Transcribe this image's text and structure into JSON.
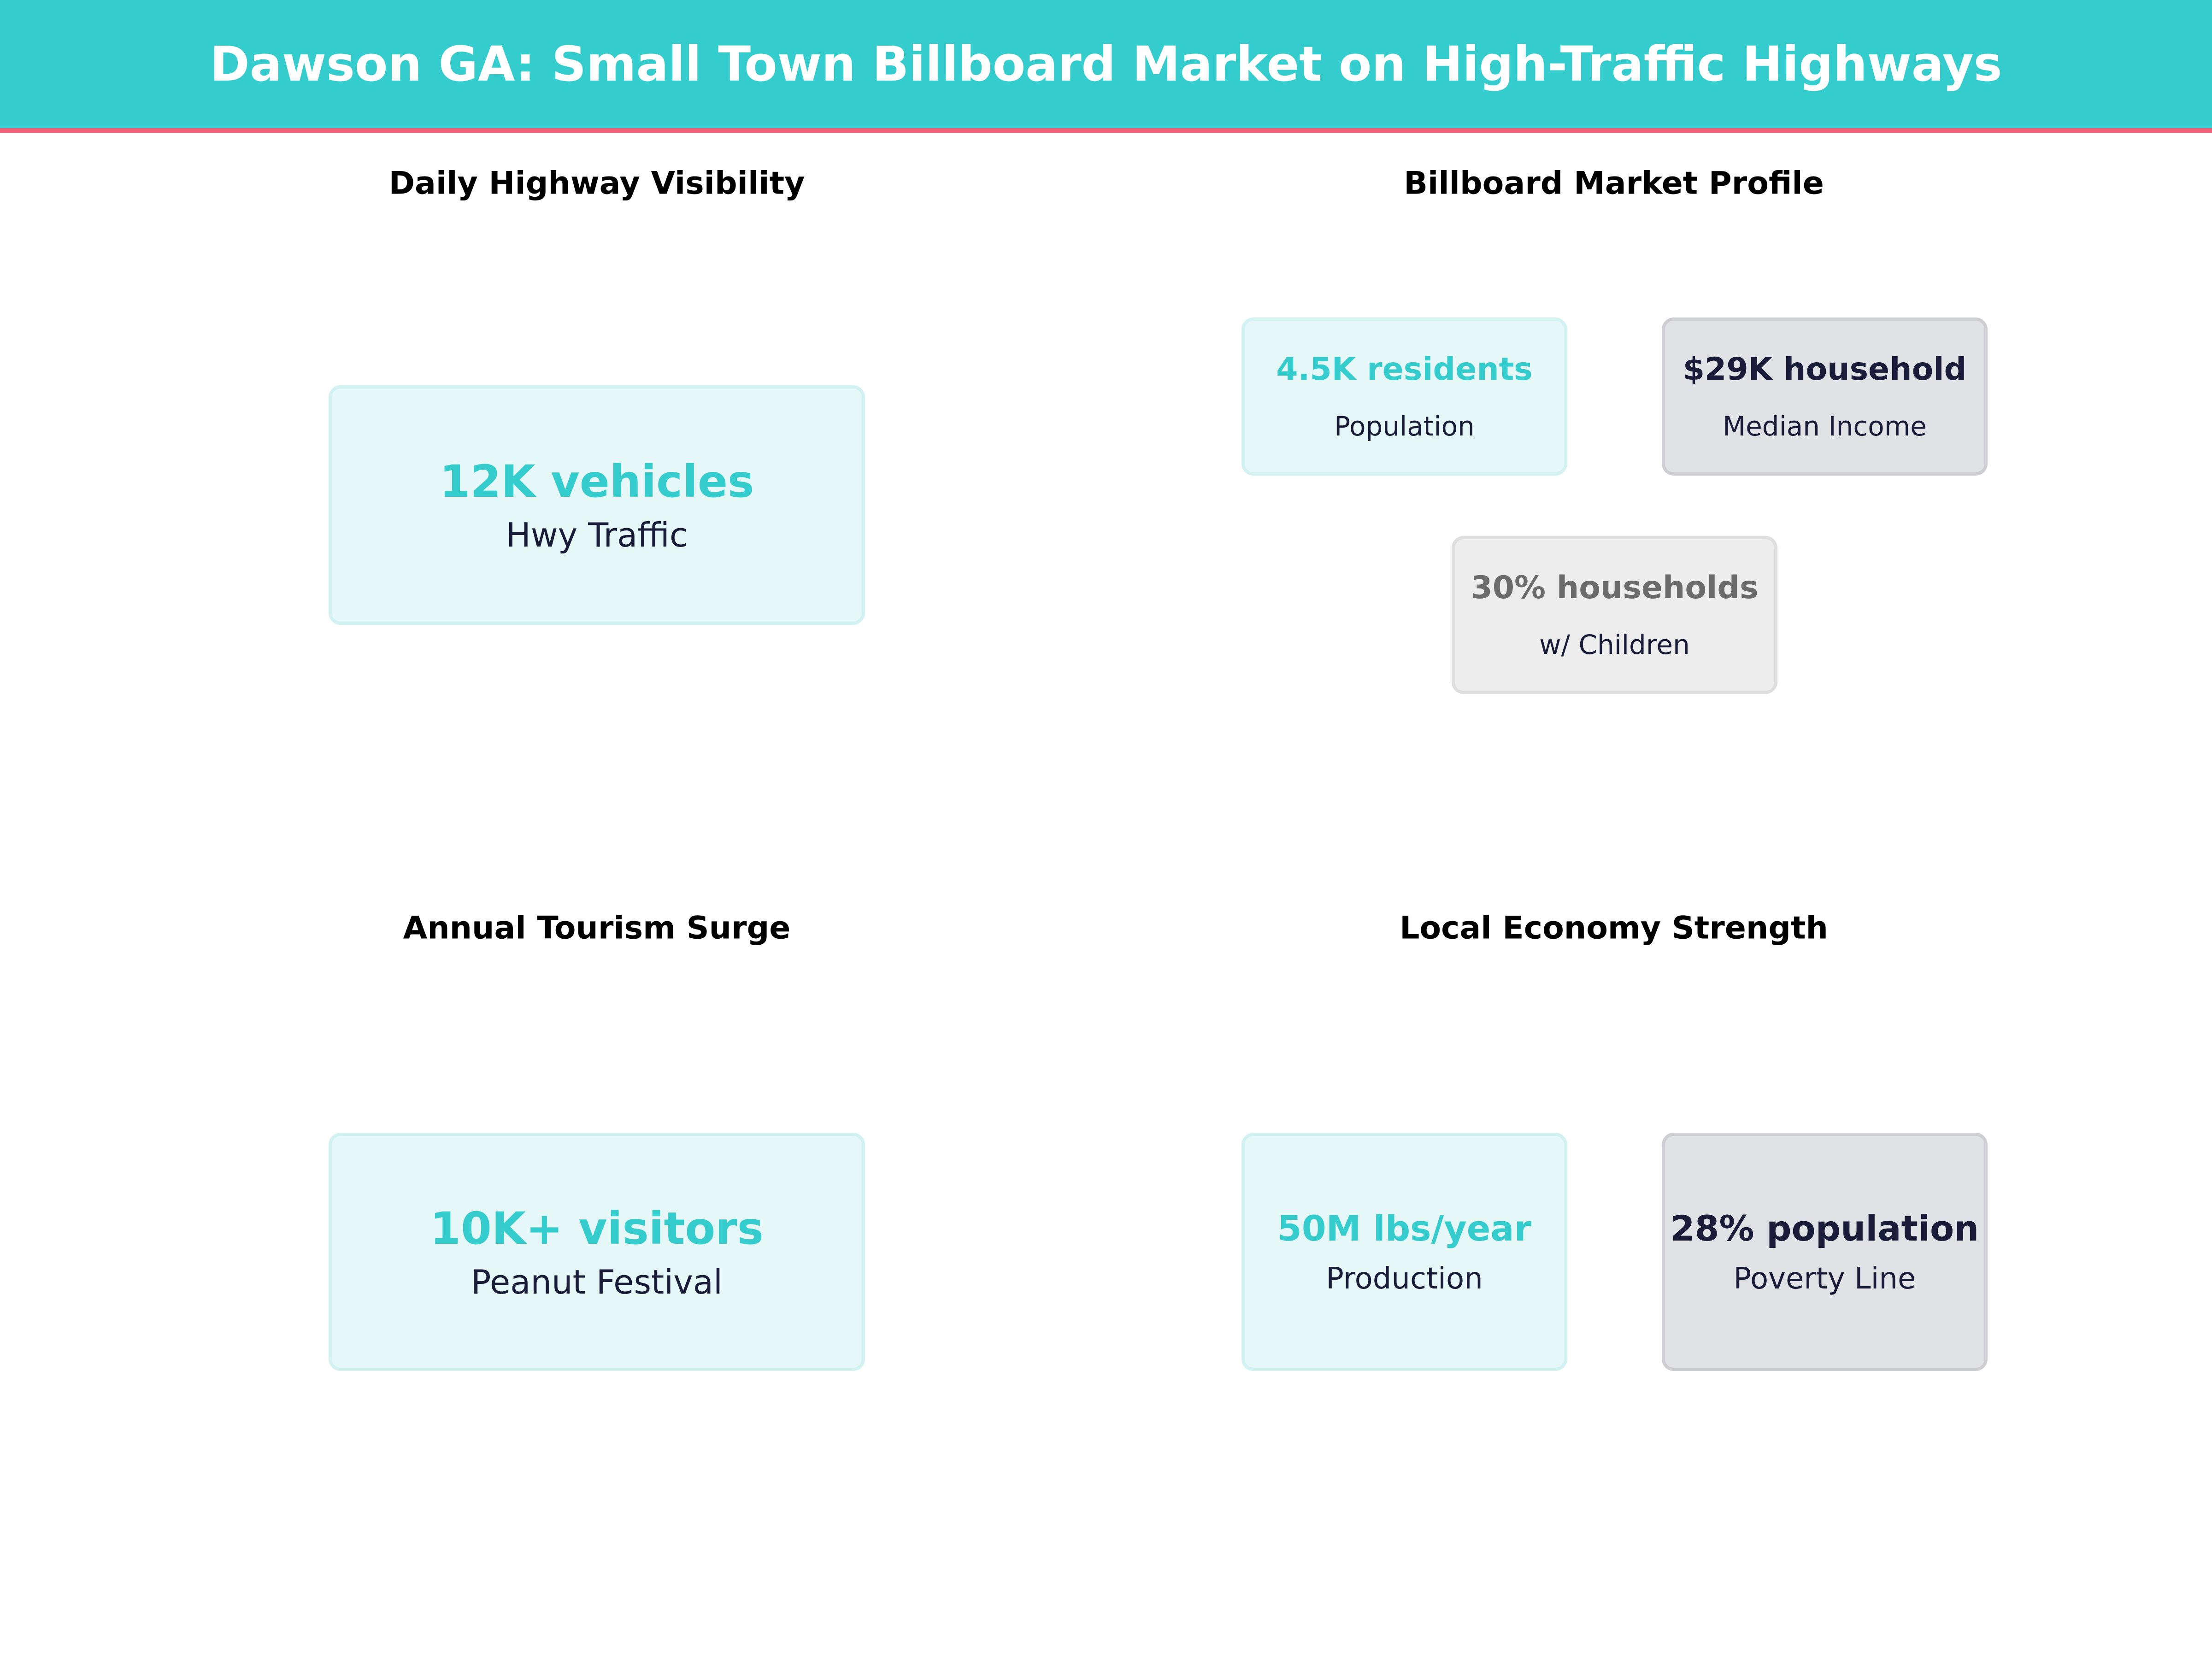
{
  "header": {
    "title": "Dawson GA: Small Town Billboard Market on High-Traffic Highways"
  },
  "colors": {
    "accent": "#35cccd",
    "header_rule": "#f0617a",
    "dark": "#1a1d3a",
    "muted": "#6b6b6b"
  },
  "panels": [
    {
      "title": "Daily Highway Visibility",
      "cards": [
        {
          "value": "12K vehicles",
          "label": "Hwy Traffic"
        }
      ]
    },
    {
      "title": "Billboard Market Profile",
      "cards": [
        {
          "value": "4.5K residents",
          "label": "Population"
        },
        {
          "value": "$29K household",
          "label": "Median Income"
        },
        {
          "value": "30% households",
          "label": "w/ Children"
        }
      ]
    },
    {
      "title": "Annual Tourism Surge",
      "cards": [
        {
          "value": "10K+ visitors",
          "label": "Peanut Festival"
        }
      ]
    },
    {
      "title": "Local Economy Strength",
      "cards": [
        {
          "value": "50M lbs/year",
          "label": "Production"
        },
        {
          "value": "28% population",
          "label": "Poverty Line"
        }
      ]
    }
  ]
}
